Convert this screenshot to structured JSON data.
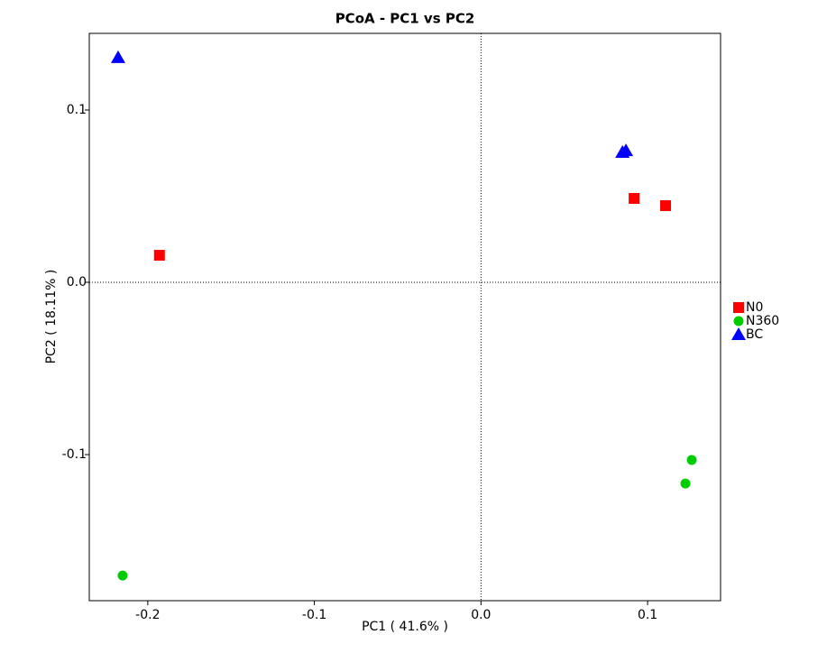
{
  "chart_data": {
    "type": "scatter",
    "title": "PCoA - PC1 vs PC2",
    "x_label": "PC1 ( 41.6% )",
    "y_label": "PC2 ( 18.11% )",
    "xlim": [
      -0.2351,
      0.1438
    ],
    "ylim": [
      -0.1848,
      0.1445
    ],
    "xticks": [
      -0.2,
      -0.1,
      {
        "value": 0,
        "label": "0.0"
      },
      0.1
    ],
    "yticks": [
      -0.1,
      {
        "value": 0,
        "label": "0.0"
      },
      0.1
    ],
    "zero_lines": true,
    "legend": "right",
    "series": [
      {
        "name": "N0",
        "color": "#ff0000",
        "marker": "square",
        "x": [
          -0.193,
          0.0919,
          0.1108
        ],
        "y": [
          0.0157,
          0.0487,
          0.0445
        ]
      },
      {
        "name": "N360",
        "color": "#00cc00",
        "marker": "circle",
        "x": [
          -0.2151,
          0.1265,
          0.1227
        ],
        "y": [
          -0.1702,
          -0.1031,
          -0.1168
        ]
      },
      {
        "name": "BC",
        "color": "#0000ff",
        "marker": "triangle",
        "x": [
          -0.2178,
          0.0849,
          0.087
        ],
        "y": [
          0.1304,
          0.0754,
          0.0764
        ]
      }
    ]
  }
}
